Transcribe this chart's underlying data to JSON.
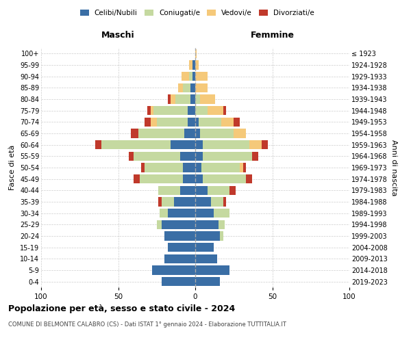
{
  "age_groups": [
    "0-4",
    "5-9",
    "10-14",
    "15-19",
    "20-24",
    "25-29",
    "30-34",
    "35-39",
    "40-44",
    "45-49",
    "50-54",
    "55-59",
    "60-64",
    "65-69",
    "70-74",
    "75-79",
    "80-84",
    "85-89",
    "90-94",
    "95-99",
    "100+"
  ],
  "birth_years": [
    "2019-2023",
    "2014-2018",
    "2009-2013",
    "2004-2008",
    "1999-2003",
    "1994-1998",
    "1989-1993",
    "1984-1988",
    "1979-1983",
    "1974-1978",
    "1969-1973",
    "1964-1968",
    "1959-1963",
    "1954-1958",
    "1949-1953",
    "1944-1948",
    "1939-1943",
    "1934-1938",
    "1929-1933",
    "1924-1928",
    "≤ 1923"
  ],
  "colors": {
    "celibe": "#3a6ea5",
    "coniugato": "#c5d9a0",
    "vedovo": "#f5c97a",
    "divorziato": "#c0392b"
  },
  "maschi": {
    "celibe": [
      22,
      28,
      20,
      18,
      20,
      22,
      18,
      14,
      10,
      8,
      8,
      10,
      16,
      7,
      5,
      5,
      3,
      3,
      2,
      2,
      0
    ],
    "coniugato": [
      0,
      0,
      0,
      0,
      0,
      3,
      5,
      8,
      14,
      28,
      25,
      30,
      45,
      30,
      20,
      22,
      10,
      5,
      2,
      0,
      0
    ],
    "vedovo": [
      0,
      0,
      0,
      0,
      0,
      0,
      0,
      0,
      0,
      0,
      0,
      0,
      0,
      0,
      4,
      2,
      3,
      3,
      5,
      2,
      0
    ],
    "divorziato": [
      0,
      0,
      0,
      0,
      0,
      0,
      0,
      2,
      0,
      4,
      2,
      3,
      4,
      5,
      4,
      2,
      2,
      0,
      0,
      0,
      0
    ]
  },
  "femmine": {
    "celibe": [
      16,
      22,
      14,
      12,
      16,
      15,
      12,
      10,
      8,
      5,
      4,
      5,
      5,
      3,
      2,
      0,
      0,
      0,
      0,
      0,
      0
    ],
    "coniugato": [
      0,
      0,
      0,
      0,
      2,
      4,
      10,
      8,
      14,
      28,
      25,
      32,
      30,
      22,
      15,
      8,
      3,
      0,
      0,
      0,
      0
    ],
    "vedovo": [
      0,
      0,
      0,
      0,
      0,
      0,
      0,
      0,
      0,
      0,
      2,
      0,
      8,
      8,
      8,
      10,
      10,
      8,
      8,
      2,
      1
    ],
    "divorziato": [
      0,
      0,
      0,
      0,
      0,
      0,
      0,
      2,
      4,
      4,
      2,
      4,
      4,
      0,
      4,
      2,
      0,
      0,
      0,
      0,
      0
    ]
  },
  "xlim": 100,
  "title": "Popolazione per età, sesso e stato civile - 2024",
  "subtitle": "COMUNE DI BELMONTE CALABRO (CS) - Dati ISTAT 1° gennaio 2024 - Elaborazione TUTTITALIA.IT",
  "xlabel_left": "Maschi",
  "xlabel_right": "Femmine",
  "ylabel_left": "Fasce di età",
  "ylabel_right": "Anni di nascita",
  "legend_labels": [
    "Celibi/Nubili",
    "Coniugati/e",
    "Vedovi/e",
    "Divorziati/e"
  ]
}
